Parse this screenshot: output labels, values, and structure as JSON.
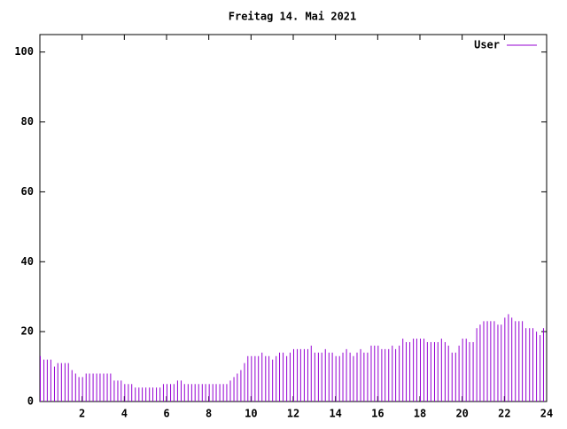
{
  "chart_data": {
    "type": "impulse",
    "title": "Freitag 14. Mai 2021",
    "x": [
      0,
      0.17,
      0.33,
      0.5,
      0.67,
      0.83,
      1,
      1.17,
      1.33,
      1.5,
      1.67,
      1.83,
      2,
      2.17,
      2.33,
      2.5,
      2.67,
      2.83,
      3,
      3.17,
      3.33,
      3.5,
      3.67,
      3.83,
      4,
      4.17,
      4.33,
      4.5,
      4.67,
      4.83,
      5,
      5.17,
      5.33,
      5.5,
      5.67,
      5.83,
      6,
      6.17,
      6.33,
      6.5,
      6.67,
      6.83,
      7,
      7.17,
      7.33,
      7.5,
      7.67,
      7.83,
      8,
      8.17,
      8.33,
      8.5,
      8.67,
      8.83,
      9,
      9.17,
      9.33,
      9.5,
      9.67,
      9.83,
      10,
      10.17,
      10.33,
      10.5,
      10.67,
      10.83,
      11,
      11.17,
      11.33,
      11.5,
      11.67,
      11.83,
      12,
      12.17,
      12.33,
      12.5,
      12.67,
      12.83,
      13,
      13.17,
      13.33,
      13.5,
      13.67,
      13.83,
      14,
      14.17,
      14.33,
      14.5,
      14.67,
      14.83,
      15,
      15.17,
      15.33,
      15.5,
      15.67,
      15.83,
      16,
      16.17,
      16.33,
      16.5,
      16.67,
      16.83,
      17,
      17.17,
      17.33,
      17.5,
      17.67,
      17.83,
      18,
      18.17,
      18.33,
      18.5,
      18.67,
      18.83,
      19,
      19.17,
      19.33,
      19.5,
      19.67,
      19.83,
      20,
      20.17,
      20.33,
      20.5,
      20.67,
      20.83,
      21,
      21.17,
      21.33,
      21.5,
      21.67,
      21.83,
      22,
      22.17,
      22.33,
      22.5,
      22.67,
      22.83,
      23,
      23.17,
      23.33,
      23.5,
      23.67,
      23.83
    ],
    "series": [
      {
        "name": "User",
        "color": "#9400d3",
        "values": [
          13,
          12,
          12,
          12,
          10,
          11,
          11,
          11,
          11,
          9,
          8,
          7,
          7,
          8,
          8,
          8,
          8,
          8,
          8,
          8,
          8,
          6,
          6,
          6,
          5,
          5,
          5,
          4,
          4,
          4,
          4,
          4,
          4,
          4,
          4,
          5,
          5,
          5,
          5,
          6,
          6,
          5,
          5,
          5,
          5,
          5,
          5,
          5,
          5,
          5,
          5,
          5,
          5,
          5,
          6,
          7,
          8,
          9,
          11,
          13,
          13,
          13,
          13,
          14,
          13,
          13,
          12,
          13,
          14,
          14,
          13,
          14,
          15,
          15,
          15,
          15,
          15,
          16,
          14,
          14,
          14,
          15,
          14,
          14,
          13,
          13,
          14,
          15,
          14,
          13,
          14,
          15,
          14,
          14,
          16,
          16,
          16,
          15,
          15,
          15,
          16,
          15,
          16,
          18,
          17,
          17,
          18,
          18,
          18,
          18,
          17,
          17,
          17,
          17,
          18,
          17,
          16,
          14,
          14,
          16,
          18,
          18,
          17,
          17,
          21,
          22,
          23,
          23,
          23,
          23,
          22,
          22,
          24,
          25,
          24,
          23,
          23,
          23,
          21,
          21,
          21,
          20,
          19,
          21
        ]
      }
    ],
    "xlim": [
      0,
      24
    ],
    "xticks": [
      2,
      4,
      6,
      8,
      10,
      12,
      14,
      16,
      18,
      20,
      22,
      24
    ],
    "ylim": [
      0,
      105
    ],
    "yticks": [
      0,
      20,
      40,
      60,
      80,
      100
    ],
    "legend": "top-right"
  }
}
